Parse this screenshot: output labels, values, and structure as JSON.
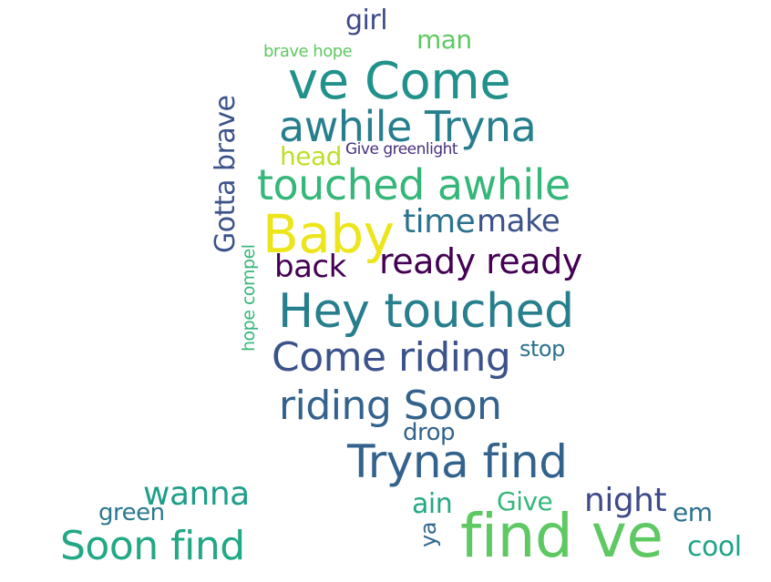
{
  "words": [
    {
      "text": "girl",
      "color": "#3e4a89"
    },
    {
      "text": "man",
      "color": "#5ec962"
    },
    {
      "text": "brave hope",
      "color": "#5ec962"
    },
    {
      "text": "ve Come",
      "color": "#21918c"
    },
    {
      "text": "awhile Tryna",
      "color": "#277f8e"
    },
    {
      "text": "head",
      "color": "#bddf26"
    },
    {
      "text": "Give greenlight",
      "color": "#46307e"
    },
    {
      "text": "touched awhile",
      "color": "#35b779"
    },
    {
      "text": "Gotta brave",
      "color": "#3b528b"
    },
    {
      "text": "Baby",
      "color": "#ede51b"
    },
    {
      "text": "time",
      "color": "#2c728e"
    },
    {
      "text": "make",
      "color": "#3b528b"
    },
    {
      "text": "hope compel",
      "color": "#35b779"
    },
    {
      "text": "back",
      "color": "#440154"
    },
    {
      "text": "ready ready",
      "color": "#440154"
    },
    {
      "text": "Hey touched",
      "color": "#277f8e"
    },
    {
      "text": "Come riding",
      "color": "#3b528b"
    },
    {
      "text": "stop",
      "color": "#2c728e"
    },
    {
      "text": "riding Soon",
      "color": "#33638d"
    },
    {
      "text": "drop",
      "color": "#33638d"
    },
    {
      "text": "Tryna find",
      "color": "#33638d"
    },
    {
      "text": "wanna",
      "color": "#1f9e89"
    },
    {
      "text": "green",
      "color": "#2a788e"
    },
    {
      "text": "Soon find",
      "color": "#22a884"
    },
    {
      "text": "ain",
      "color": "#22a884"
    },
    {
      "text": "ya",
      "color": "#31688e"
    },
    {
      "text": "Give",
      "color": "#35b779"
    },
    {
      "text": "night",
      "color": "#3e4a89"
    },
    {
      "text": "em",
      "color": "#2c728e"
    },
    {
      "text": "find ve",
      "color": "#5ec962"
    },
    {
      "text": "cool",
      "color": "#20a386"
    }
  ]
}
